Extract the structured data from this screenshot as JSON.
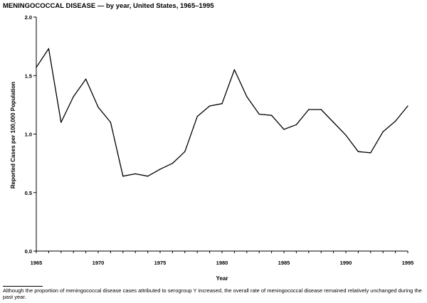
{
  "title": "MENINGOCOCCAL DISEASE — by year, United States, 1965–1995",
  "footnote": "Although the proportion of meningococcal disease cases attributed to serogroup Y increased, the overall rate of meningococcal disease remained relatively unchanged during the past year.",
  "chart_data": {
    "type": "line",
    "title": "MENINGOCOCCAL DISEASE — by year, United States, 1965–1995",
    "xlabel": "Year",
    "ylabel": "Reported Cases per 100,000 Population",
    "xlim": [
      1965,
      1995
    ],
    "ylim": [
      0.0,
      2.0
    ],
    "x_ticks": [
      "1965",
      "1970",
      "1975",
      "1980",
      "1985",
      "1990",
      "1995"
    ],
    "y_ticks": [
      "0.0",
      "0.5",
      "1.0",
      "1.5",
      "2.0"
    ],
    "grid": false,
    "series": [
      {
        "color": "#000000",
        "x": [
          1965,
          1966,
          1967,
          1968,
          1969,
          1970,
          1971,
          1972,
          1973,
          1974,
          1975,
          1976,
          1977,
          1978,
          1979,
          1980,
          1981,
          1982,
          1983,
          1984,
          1985,
          1986,
          1987,
          1988,
          1989,
          1990,
          1991,
          1992,
          1993,
          1994,
          1995
        ],
        "y": [
          1.57,
          1.73,
          1.1,
          1.32,
          1.47,
          1.23,
          1.1,
          0.64,
          0.66,
          0.64,
          0.7,
          0.75,
          0.85,
          1.15,
          1.24,
          1.26,
          1.55,
          1.32,
          1.17,
          1.16,
          1.04,
          1.08,
          1.21,
          1.21,
          1.1,
          0.99,
          0.85,
          0.84,
          1.02,
          1.11,
          1.24
        ]
      }
    ]
  }
}
